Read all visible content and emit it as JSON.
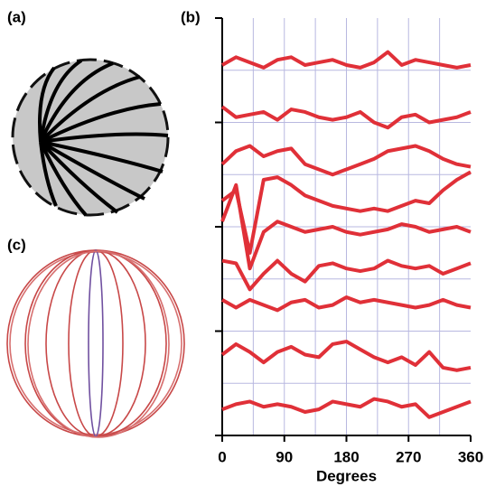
{
  "panel_labels": [
    "(a)",
    "(b)",
    "(c)"
  ],
  "chart_data": {
    "type": "line",
    "xlabel": "Degrees",
    "x": [
      0,
      20,
      40,
      60,
      80,
      100,
      120,
      140,
      160,
      180,
      200,
      220,
      240,
      260,
      280,
      300,
      320,
      340,
      360
    ],
    "xlim": [
      0,
      360
    ],
    "xticks": [
      0,
      90,
      180,
      270,
      360
    ],
    "xgrid": [
      45,
      90,
      135,
      180,
      225,
      270,
      315
    ],
    "ylim": [
      0,
      8
    ],
    "yticks": [
      0,
      2,
      4,
      6,
      8
    ],
    "ygrid": [
      1,
      2,
      3,
      4,
      5,
      6,
      7
    ],
    "grid": true,
    "series": [
      {
        "color": "#e03038",
        "values": [
          7.1,
          7.25,
          7.15,
          7.05,
          7.2,
          7.25,
          7.1,
          7.15,
          7.2,
          7.1,
          7.05,
          7.15,
          7.35,
          7.1,
          7.2,
          7.15,
          7.1,
          7.05,
          7.1
        ]
      },
      {
        "color": "#e03038",
        "values": [
          6.3,
          6.1,
          6.15,
          6.2,
          6.05,
          6.25,
          6.2,
          6.1,
          6.05,
          6.1,
          6.2,
          6.0,
          5.9,
          6.1,
          6.15,
          6.0,
          6.05,
          6.1,
          6.2
        ]
      },
      {
        "color": "#e03038",
        "values": [
          5.2,
          5.45,
          5.55,
          5.35,
          5.45,
          5.5,
          5.2,
          5.1,
          5.0,
          5.1,
          5.2,
          5.3,
          5.45,
          5.5,
          5.55,
          5.45,
          5.3,
          5.2,
          5.15
        ]
      },
      {
        "color": "#e03038",
        "values": [
          4.5,
          4.7,
          3.5,
          4.9,
          4.95,
          4.8,
          4.6,
          4.5,
          4.4,
          4.35,
          4.3,
          4.35,
          4.3,
          4.4,
          4.5,
          4.45,
          4.7,
          4.9,
          5.05
        ]
      },
      {
        "color": "#e03038",
        "values": [
          4.1,
          4.8,
          3.2,
          3.9,
          4.1,
          4.0,
          3.9,
          3.95,
          4.0,
          3.9,
          3.85,
          3.9,
          3.95,
          4.05,
          4.0,
          3.9,
          3.95,
          4.0,
          3.9
        ]
      },
      {
        "color": "#e03038",
        "values": [
          3.35,
          3.3,
          2.8,
          3.1,
          3.35,
          3.1,
          2.95,
          3.25,
          3.3,
          3.2,
          3.15,
          3.2,
          3.35,
          3.25,
          3.2,
          3.25,
          3.1,
          3.2,
          3.3
        ]
      },
      {
        "color": "#e03038",
        "values": [
          2.6,
          2.45,
          2.6,
          2.5,
          2.4,
          2.55,
          2.6,
          2.45,
          2.5,
          2.65,
          2.55,
          2.6,
          2.55,
          2.5,
          2.45,
          2.5,
          2.6,
          2.5,
          2.45
        ]
      },
      {
        "color": "#e03038",
        "values": [
          1.55,
          1.75,
          1.6,
          1.4,
          1.6,
          1.7,
          1.55,
          1.5,
          1.75,
          1.8,
          1.65,
          1.5,
          1.4,
          1.5,
          1.35,
          1.6,
          1.3,
          1.25,
          1.3
        ]
      },
      {
        "color": "#e03038",
        "values": [
          0.5,
          0.6,
          0.65,
          0.55,
          0.6,
          0.55,
          0.45,
          0.5,
          0.65,
          0.6,
          0.55,
          0.7,
          0.65,
          0.55,
          0.6,
          0.35,
          0.45,
          0.55,
          0.65
        ]
      }
    ]
  }
}
